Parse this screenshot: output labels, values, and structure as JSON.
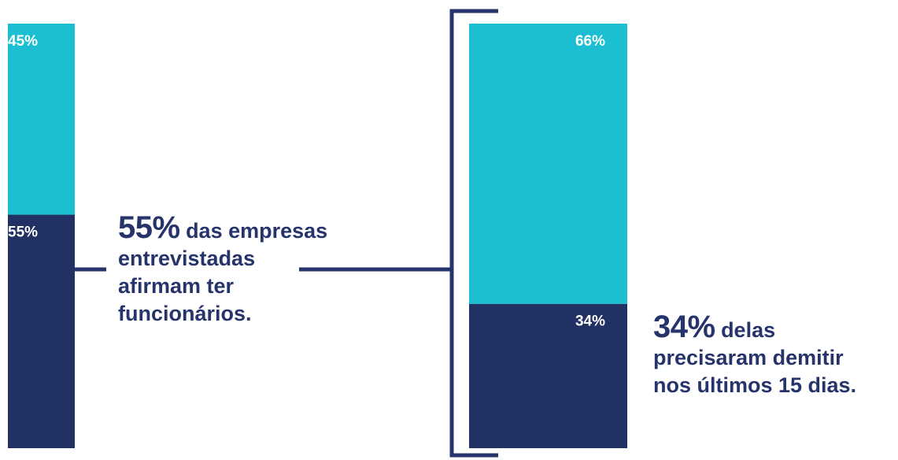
{
  "colors": {
    "dark": "#223163",
    "light": "#1cbfd1",
    "connector": "#26346b",
    "text": "#26346b"
  },
  "chart_data": [
    {
      "type": "bar",
      "stacked": true,
      "series": [
        {
          "value": 55,
          "label": "55%",
          "color": "#223163"
        },
        {
          "value": 45,
          "label": "45%",
          "color": "#1cbfd1"
        }
      ],
      "ylim": [
        0,
        100
      ]
    },
    {
      "type": "bar",
      "stacked": true,
      "series": [
        {
          "value": 34,
          "label": "34%",
          "color": "#223163"
        },
        {
          "value": 66,
          "label": "66%",
          "color": "#1cbfd1"
        }
      ],
      "ylim": [
        0,
        100
      ]
    }
  ],
  "annotations": {
    "left": {
      "highlight": "55%",
      "line1_rest": " das empresas",
      "line2": "entrevistadas",
      "line3": "afirmam ter",
      "line4": "funcionários."
    },
    "right": {
      "highlight": "34%",
      "line1_rest": " delas",
      "line2": "precisaram demitir",
      "line3": "nos últimos 15 dias."
    }
  }
}
